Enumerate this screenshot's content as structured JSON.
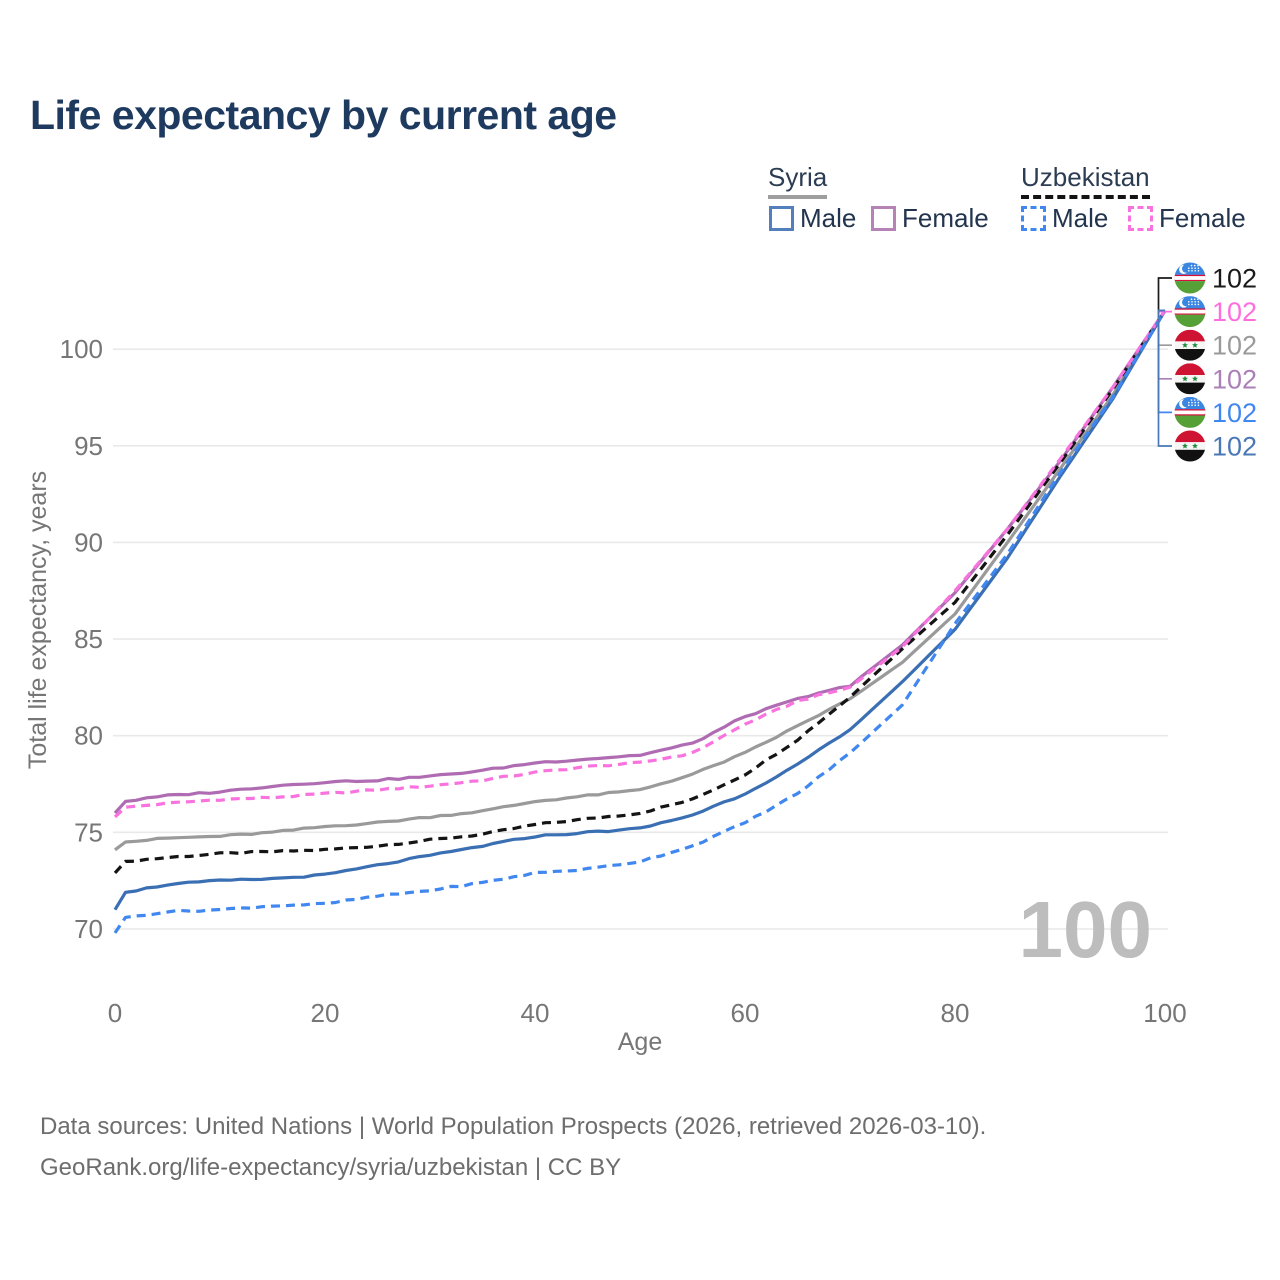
{
  "title": "Life expectancy by current age",
  "legend": {
    "groups": [
      {
        "country": "Syria",
        "line_style": "solid",
        "items": [
          {
            "label": "Male",
            "color": "#5380bc"
          },
          {
            "label": "Female",
            "color": "#b583b5"
          }
        ]
      },
      {
        "country": "Uzbekistan",
        "line_style": "dashed",
        "items": [
          {
            "label": "Male",
            "color": "#4187f0"
          },
          {
            "label": "Female",
            "color": "#f973df"
          }
        ]
      }
    ]
  },
  "chart_data": {
    "type": "line",
    "title": "Life expectancy by current age",
    "xlabel": "Age",
    "ylabel": "Total life expectancy, years",
    "x_ticks": [
      0,
      20,
      40,
      60,
      80,
      100
    ],
    "y_ticks": [
      70,
      75,
      80,
      85,
      90,
      95,
      100
    ],
    "xlim": [
      0,
      100
    ],
    "ylim": [
      69.5,
      102.5
    ],
    "grid": "horizontal",
    "legend_position": "top-right",
    "watermark": "100",
    "ages": [
      0,
      1,
      5,
      10,
      15,
      20,
      25,
      30,
      35,
      40,
      45,
      50,
      55,
      60,
      65,
      70,
      75,
      80,
      85,
      90,
      95,
      100
    ],
    "series": [
      {
        "id": "uzbekistan-total",
        "country": "Uzbekistan",
        "sex": "Total",
        "flag": "uz",
        "dashed": true,
        "color": "#141414",
        "label_color": "#1a1a1a",
        "end_label": "102",
        "values": [
          72.9,
          73.5,
          73.7,
          73.9,
          74.0,
          74.1,
          74.3,
          74.6,
          74.9,
          75.4,
          75.7,
          76.0,
          76.7,
          78.0,
          79.8,
          82.0,
          84.5,
          86.9,
          90.4,
          94.1,
          97.9,
          102
        ]
      },
      {
        "id": "uzbekistan-female",
        "country": "Uzbekistan",
        "sex": "Female",
        "flag": "uz",
        "dashed": true,
        "color": "#f973df",
        "label_color": "#ff6ede",
        "end_label": "102",
        "values": [
          75.8,
          76.3,
          76.5,
          76.7,
          76.8,
          77.0,
          77.2,
          77.4,
          77.7,
          78.1,
          78.4,
          78.6,
          79.1,
          80.6,
          81.8,
          82.5,
          84.6,
          87.5,
          90.7,
          94.3,
          98.0,
          102
        ]
      },
      {
        "id": "syria-total",
        "country": "Syria",
        "sex": "Total",
        "flag": "sy",
        "dashed": false,
        "color": "#9a9a9a",
        "label_color": "#9a9a9a",
        "end_label": "102",
        "values": [
          74.1,
          74.5,
          74.7,
          74.8,
          75.0,
          75.3,
          75.5,
          75.8,
          76.1,
          76.6,
          76.9,
          77.2,
          78.0,
          79.1,
          80.5,
          81.9,
          83.8,
          86.3,
          90.0,
          93.8,
          97.6,
          102
        ]
      },
      {
        "id": "syria-female",
        "country": "Syria",
        "sex": "Female",
        "flag": "sy",
        "dashed": false,
        "color": "#b06cb2",
        "label_color": "#ab7fb8",
        "end_label": "102",
        "values": [
          76.0,
          76.6,
          76.9,
          77.1,
          77.4,
          77.6,
          77.7,
          77.9,
          78.2,
          78.6,
          78.8,
          79.0,
          79.6,
          81.0,
          81.9,
          82.6,
          84.7,
          87.4,
          90.7,
          94.2,
          98.0,
          102
        ]
      },
      {
        "id": "uzbekistan-male",
        "country": "Uzbekistan",
        "sex": "Male",
        "flag": "uz",
        "dashed": true,
        "color": "#4187f0",
        "label_color": "#4187f0",
        "end_label": "102",
        "values": [
          69.8,
          70.6,
          70.9,
          71.0,
          71.2,
          71.3,
          71.7,
          72.0,
          72.4,
          72.9,
          73.1,
          73.5,
          74.3,
          75.5,
          77.0,
          79.1,
          81.6,
          85.8,
          89.4,
          93.6,
          97.5,
          102
        ]
      },
      {
        "id": "syria-male",
        "country": "Syria",
        "sex": "Male",
        "flag": "sy",
        "dashed": false,
        "color": "#3a6fb3",
        "label_color": "#4a77b5",
        "end_label": "102",
        "values": [
          71.0,
          71.9,
          72.3,
          72.5,
          72.6,
          72.8,
          73.3,
          73.8,
          74.3,
          74.8,
          75.0,
          75.2,
          75.9,
          77.0,
          78.5,
          80.3,
          82.8,
          85.5,
          89.2,
          93.4,
          97.4,
          102
        ]
      }
    ],
    "flag_colors": {
      "uz": {
        "blue": "#3b86e0",
        "white": "#ffffff",
        "red": "#d6103c",
        "green": "#56a038"
      },
      "sy": {
        "red": "#cf1332",
        "white": "#f6f6f6",
        "black": "#111111",
        "green": "#1f8a3b"
      }
    }
  },
  "footer": {
    "line1": "Data sources: United Nations | World Population Prospects (2026, retrieved 2026-03-10).",
    "line2": "GeoRank.org/life-expectancy/syria/uzbekistan | CC BY"
  }
}
